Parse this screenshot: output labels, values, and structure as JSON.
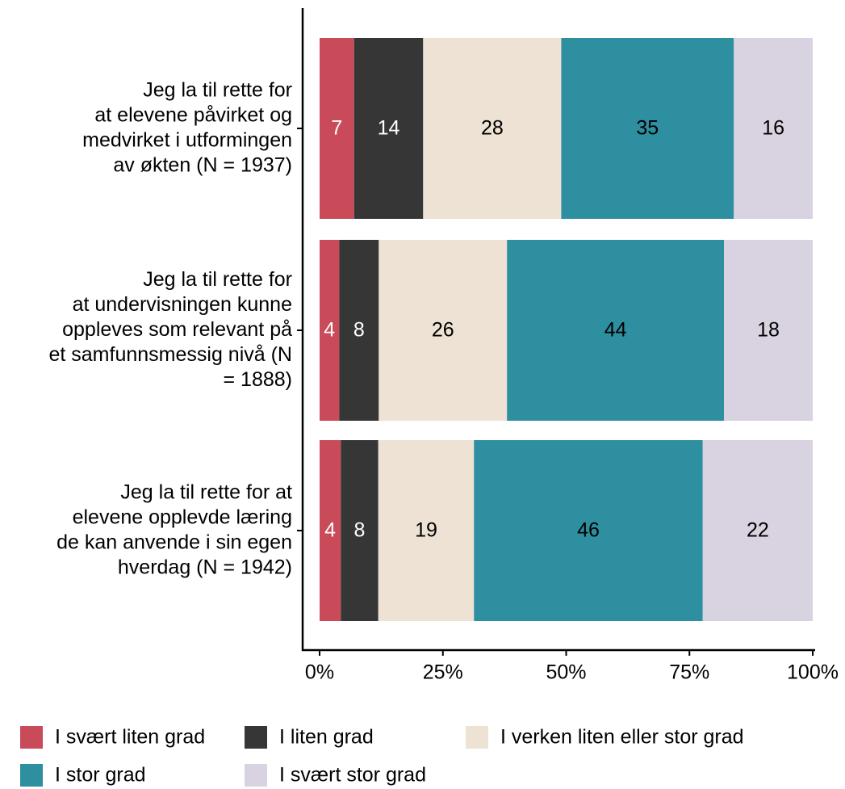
{
  "chart_data": {
    "type": "bar",
    "orientation": "horizontal",
    "stacked": true,
    "categories": [
      "Jeg la til rette for\nat elevene påvirket og\nmedvirket i utformingen\nav økten (N = 1937)",
      "Jeg la til rette for\nat undervisningen kunne\noppleves som relevant på\net samfunnsmessig nivå (N\n= 1888)",
      "Jeg la til rette for at\nelevene opplevde læring\nde kan anvende i sin egen\nhverdag (N = 1942)"
    ],
    "series": [
      {
        "name": "I svært liten grad",
        "color": "#c94b5a",
        "label_color": "#ffffff",
        "values": [
          7,
          4,
          4.3
        ],
        "value_labels": [
          "7",
          "4",
          "4"
        ]
      },
      {
        "name": "I liten grad",
        "color": "#363636",
        "label_color": "#ffffff",
        "values": [
          14,
          8,
          7.6
        ],
        "value_labels": [
          "14",
          "8",
          "8"
        ]
      },
      {
        "name": "I verken liten eller stor grad",
        "color": "#ede2d3",
        "label_color": "#000000",
        "values": [
          28,
          26,
          19.4
        ],
        "value_labels": [
          "28",
          "26",
          "19"
        ]
      },
      {
        "name": "I stor grad",
        "color": "#2e8fa0",
        "label_color": "#000000",
        "values": [
          35,
          44,
          46.4
        ],
        "value_labels": [
          "35",
          "44",
          "46"
        ]
      },
      {
        "name": "I svært stor grad",
        "color": "#d9d2e0",
        "label_color": "#000000",
        "values": [
          16,
          18,
          22.3
        ],
        "value_labels": [
          "16",
          "18",
          "22"
        ]
      }
    ],
    "xlim": [
      0,
      100
    ],
    "xticks": [
      {
        "value": 0,
        "label": "0%"
      },
      {
        "value": 25,
        "label": "25%"
      },
      {
        "value": 50,
        "label": "50%"
      },
      {
        "value": 75,
        "label": "75%"
      },
      {
        "value": 100,
        "label": "100%"
      }
    ],
    "legend": "bottom"
  }
}
